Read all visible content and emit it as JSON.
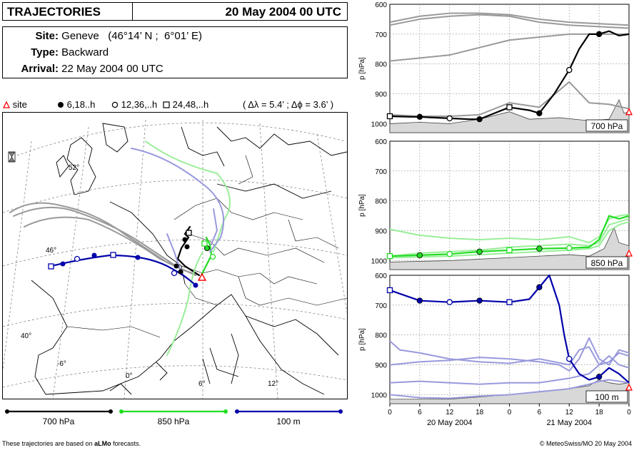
{
  "header": {
    "title": "TRAJECTORIES",
    "date": "20 May 2004 00 UTC"
  },
  "info": {
    "site_label": "Site:",
    "site_value": "Geneve   (46°14’ N ;  6°01’ E)",
    "type_label": "Type:",
    "type_value": "Backward",
    "arrival_label": "Arrival:",
    "arrival_value": "22 May 2004 00 UTC"
  },
  "legend": {
    "site": "site",
    "m6": "6,18..h",
    "m12": "12,36,..h",
    "m24": "24,48,..h",
    "resolution": "( Δλ = 5.4’ ; Δϕ = 3.6’ )"
  },
  "map": {
    "lat_labels": [
      "52°",
      "46°",
      "40°"
    ],
    "lon_labels": [
      "-6°",
      "0°",
      "6°",
      "12°"
    ]
  },
  "bottom_legend": [
    "700 hPa",
    "850 hPa",
    "100 m"
  ],
  "footer": {
    "left_prefix": "These trajectories are based on ",
    "left_bold": "aLMo",
    "left_suffix": " forecasts.",
    "right": "© MeteoSwiss/MO 20 May 2004"
  },
  "colors": {
    "p700": "#000000",
    "p850": "#22dd22",
    "m100": "#0000aa",
    "grey": "#999999",
    "light_green": "#99ee99",
    "light_blue": "#9999dd",
    "site": "#ff0000",
    "terrain": "#d8d8d8"
  },
  "chart_data": {
    "type": "line",
    "x_ticks": [
      "0",
      "6",
      "12",
      "18",
      "0",
      "6",
      "12",
      "18",
      "0"
    ],
    "x_hours": [
      0,
      6,
      12,
      18,
      24,
      30,
      36,
      42,
      48
    ],
    "xlabel_days": [
      "20 May 2004",
      "21 May 2004"
    ],
    "ylabel": "p [hPa]",
    "ylim": [
      1030,
      600
    ],
    "yticks": [
      600,
      700,
      800,
      900,
      1000
    ],
    "panels": [
      {
        "label": "700 hPa",
        "terrain": [
          [
            0,
            1000
          ],
          [
            6,
            995
          ],
          [
            12,
            1000
          ],
          [
            18,
            985
          ],
          [
            24,
            960
          ],
          [
            28,
            985
          ],
          [
            34,
            980
          ],
          [
            40,
            990
          ],
          [
            44,
            985
          ],
          [
            46,
            920
          ],
          [
            47,
            965
          ],
          [
            48,
            960
          ]
        ],
        "series": [
          {
            "name": "main",
            "color": "#000000",
            "x": [
              0,
              4,
              6,
              8,
              12,
              16,
              18,
              21,
              24,
              28,
              30,
              33,
              36,
              38,
              40,
              42,
              44,
              46,
              48
            ],
            "y": [
              975,
              977,
              977,
              979,
              982,
              985,
              985,
              965,
              945,
              955,
              965,
              900,
              820,
              750,
              700,
              700,
              690,
              705,
              700
            ]
          },
          {
            "name": "grey1",
            "color": "#999999",
            "x": [
              0,
              6,
              12,
              18,
              24,
              30,
              36,
              42,
              48
            ],
            "y": [
              790,
              780,
              770,
              745,
              720,
              710,
              700,
              700,
              700
            ]
          },
          {
            "name": "grey2",
            "color": "#999999",
            "x": [
              0,
              6,
              12,
              18,
              24,
              30,
              36,
              42,
              48
            ],
            "y": [
              660,
              640,
              630,
              630,
              635,
              650,
              660,
              665,
              670
            ]
          },
          {
            "name": "grey3",
            "color": "#999999",
            "x": [
              0,
              6,
              12,
              18,
              24,
              30,
              36,
              42,
              48
            ],
            "y": [
              670,
              650,
              640,
              635,
              640,
              660,
              670,
              675,
              680
            ]
          },
          {
            "name": "grey4",
            "color": "#999999",
            "x": [
              0,
              6,
              12,
              18,
              24,
              30,
              36,
              40,
              44,
              48
            ],
            "y": [
              970,
              975,
              975,
              970,
              930,
              945,
              860,
              930,
              935,
              950
            ]
          }
        ],
        "markers": [
          {
            "x": 0,
            "y": 975,
            "kind": "square"
          },
          {
            "x": 6,
            "y": 977,
            "kind": "dot"
          },
          {
            "x": 12,
            "y": 982,
            "kind": "circle"
          },
          {
            "x": 18,
            "y": 985,
            "kind": "dot"
          },
          {
            "x": 24,
            "y": 945,
            "kind": "square"
          },
          {
            "x": 30,
            "y": 965,
            "kind": "dot"
          },
          {
            "x": 36,
            "y": 820,
            "kind": "circle"
          },
          {
            "x": 42,
            "y": 700,
            "kind": "dot"
          },
          {
            "x": 48,
            "y": 960,
            "kind": "site"
          }
        ]
      },
      {
        "label": "850 hPa",
        "terrain": [
          [
            0,
            1005
          ],
          [
            12,
            1000
          ],
          [
            24,
            990
          ],
          [
            30,
            985
          ],
          [
            36,
            980
          ],
          [
            40,
            985
          ],
          [
            43,
            960
          ],
          [
            45,
            890
          ],
          [
            46,
            940
          ],
          [
            48,
            950
          ]
        ],
        "series": [
          {
            "name": "main",
            "color": "#22dd22",
            "x": [
              0,
              6,
              12,
              18,
              24,
              30,
              36,
              40,
              42,
              44,
              46,
              48
            ],
            "y": [
              985,
              982,
              978,
              970,
              965,
              960,
              958,
              955,
              930,
              850,
              860,
              850
            ]
          },
          {
            "name": "light1",
            "color": "#99ee99",
            "x": [
              0,
              6,
              12,
              18,
              24,
              30,
              36,
              40,
              42,
              44,
              46,
              48
            ],
            "y": [
              895,
              915,
              925,
              930,
              925,
              930,
              920,
              940,
              920,
              860,
              850,
              845
            ]
          },
          {
            "name": "light2",
            "color": "#99ee99",
            "x": [
              0,
              6,
              12,
              18,
              24,
              30,
              36,
              40,
              42,
              44,
              46,
              48
            ],
            "y": [
              985,
              975,
              970,
              965,
              955,
              950,
              945,
              950,
              940,
              880,
              870,
              860
            ]
          },
          {
            "name": "light3",
            "color": "#99ee99",
            "x": [
              0,
              6,
              12,
              18,
              24,
              30,
              36,
              40,
              42,
              44,
              46,
              48
            ],
            "y": [
              990,
              988,
              985,
              980,
              975,
              970,
              965,
              960,
              950,
              900,
              880,
              870
            ]
          }
        ],
        "markers": [
          {
            "x": 0,
            "y": 985,
            "kind": "square"
          },
          {
            "x": 6,
            "y": 982,
            "kind": "dot"
          },
          {
            "x": 12,
            "y": 978,
            "kind": "circle"
          },
          {
            "x": 18,
            "y": 970,
            "kind": "dot"
          },
          {
            "x": 24,
            "y": 965,
            "kind": "square"
          },
          {
            "x": 30,
            "y": 960,
            "kind": "dot"
          },
          {
            "x": 36,
            "y": 958,
            "kind": "circle"
          },
          {
            "x": 48,
            "y": 975,
            "kind": "site"
          }
        ]
      },
      {
        "label": "100 m",
        "terrain": [
          [
            0,
            1015
          ],
          [
            12,
            1015
          ],
          [
            24,
            1000
          ],
          [
            30,
            990
          ],
          [
            36,
            980
          ],
          [
            40,
            970
          ],
          [
            42,
            950
          ],
          [
            44,
            960
          ],
          [
            46,
            965
          ],
          [
            48,
            960
          ]
        ],
        "series": [
          {
            "name": "main",
            "color": "#0000aa",
            "x": [
              0,
              6,
              12,
              18,
              24,
              28,
              30,
              32,
              34,
              35,
              36,
              38,
              40,
              42,
              44,
              46,
              48
            ],
            "y": [
              650,
              685,
              690,
              685,
              690,
              680,
              640,
              600,
              700,
              800,
              880,
              930,
              950,
              940,
              910,
              930,
              960
            ]
          },
          {
            "name": "light1",
            "color": "#9999dd",
            "x": [
              0,
              2,
              6,
              12,
              18,
              24,
              30,
              36,
              38,
              40,
              42,
              44,
              46,
              48
            ],
            "y": [
              820,
              850,
              860,
              880,
              890,
              895,
              880,
              900,
              850,
              840,
              900,
              890,
              860,
              870
            ]
          },
          {
            "name": "light2",
            "color": "#9999dd",
            "x": [
              0,
              6,
              12,
              18,
              24,
              30,
              34,
              36,
              38,
              40,
              42,
              44,
              46,
              48
            ],
            "y": [
              900,
              890,
              885,
              875,
              880,
              890,
              900,
              920,
              880,
              810,
              880,
              900,
              850,
              860
            ]
          },
          {
            "name": "light3",
            "color": "#9999dd",
            "x": [
              0,
              6,
              12,
              18,
              24,
              30,
              36,
              40,
              42,
              44,
              46,
              48
            ],
            "y": [
              960,
              955,
              960,
              965,
              960,
              960,
              945,
              930,
              900,
              870,
              900,
              910
            ]
          },
          {
            "name": "light4",
            "color": "#9999dd",
            "x": [
              0,
              6,
              12,
              18,
              24,
              30,
              36,
              40,
              42,
              44,
              46,
              48
            ],
            "y": [
              1000,
              1010,
              1012,
              1005,
              1000,
              990,
              980,
              965,
              955,
              950,
              955,
              960
            ]
          }
        ],
        "markers": [
          {
            "x": 0,
            "y": 650,
            "kind": "square"
          },
          {
            "x": 6,
            "y": 685,
            "kind": "dot"
          },
          {
            "x": 12,
            "y": 690,
            "kind": "circle"
          },
          {
            "x": 18,
            "y": 685,
            "kind": "dot"
          },
          {
            "x": 24,
            "y": 690,
            "kind": "square"
          },
          {
            "x": 30,
            "y": 640,
            "kind": "dot"
          },
          {
            "x": 36,
            "y": 880,
            "kind": "circle"
          },
          {
            "x": 42,
            "y": 940,
            "kind": "dot"
          },
          {
            "x": 48,
            "y": 975,
            "kind": "site"
          }
        ]
      }
    ]
  }
}
